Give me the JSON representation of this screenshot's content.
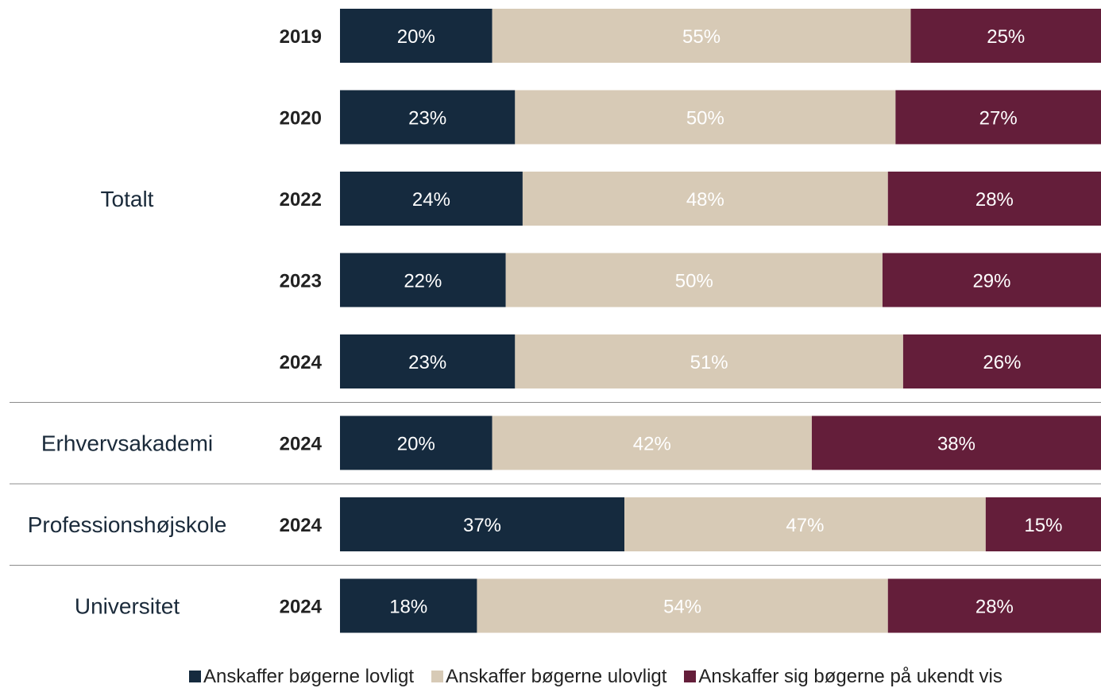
{
  "chart_data": {
    "type": "bar",
    "orientation": "horizontal",
    "stacked": true,
    "percent_suffix": "%",
    "groups": [
      {
        "label": "Totalt",
        "rows": [
          {
            "year": "2019",
            "values": [
              20,
              55,
              25
            ]
          },
          {
            "year": "2020",
            "values": [
              23,
              50,
              27
            ]
          },
          {
            "year": "2022",
            "values": [
              24,
              48,
              28
            ]
          },
          {
            "year": "2023",
            "values": [
              22,
              50,
              29
            ]
          },
          {
            "year": "2024",
            "values": [
              23,
              51,
              26
            ]
          }
        ]
      },
      {
        "label": "Erhvervsakademi",
        "rows": [
          {
            "year": "2024",
            "values": [
              20,
              42,
              38
            ]
          }
        ]
      },
      {
        "label": "Professionshøjskole",
        "rows": [
          {
            "year": "2024",
            "values": [
              37,
              47,
              15
            ]
          }
        ]
      },
      {
        "label": "Universitet",
        "rows": [
          {
            "year": "2024",
            "values": [
              18,
              54,
              28
            ]
          }
        ]
      }
    ],
    "series": [
      {
        "name": "Anskaffer bøgerne lovligt",
        "color": "#152a3e",
        "label_color": "#ffffff"
      },
      {
        "name": "Anskaffer bøgerne ulovligt",
        "color": "#d7cab6",
        "label_color": "#ffffff"
      },
      {
        "name": "Anskaffer sig bøgerne på ukendt vis",
        "color": "#641e3a",
        "label_color": "#ffffff"
      }
    ],
    "legend_position": "bottom",
    "grid": false
  }
}
